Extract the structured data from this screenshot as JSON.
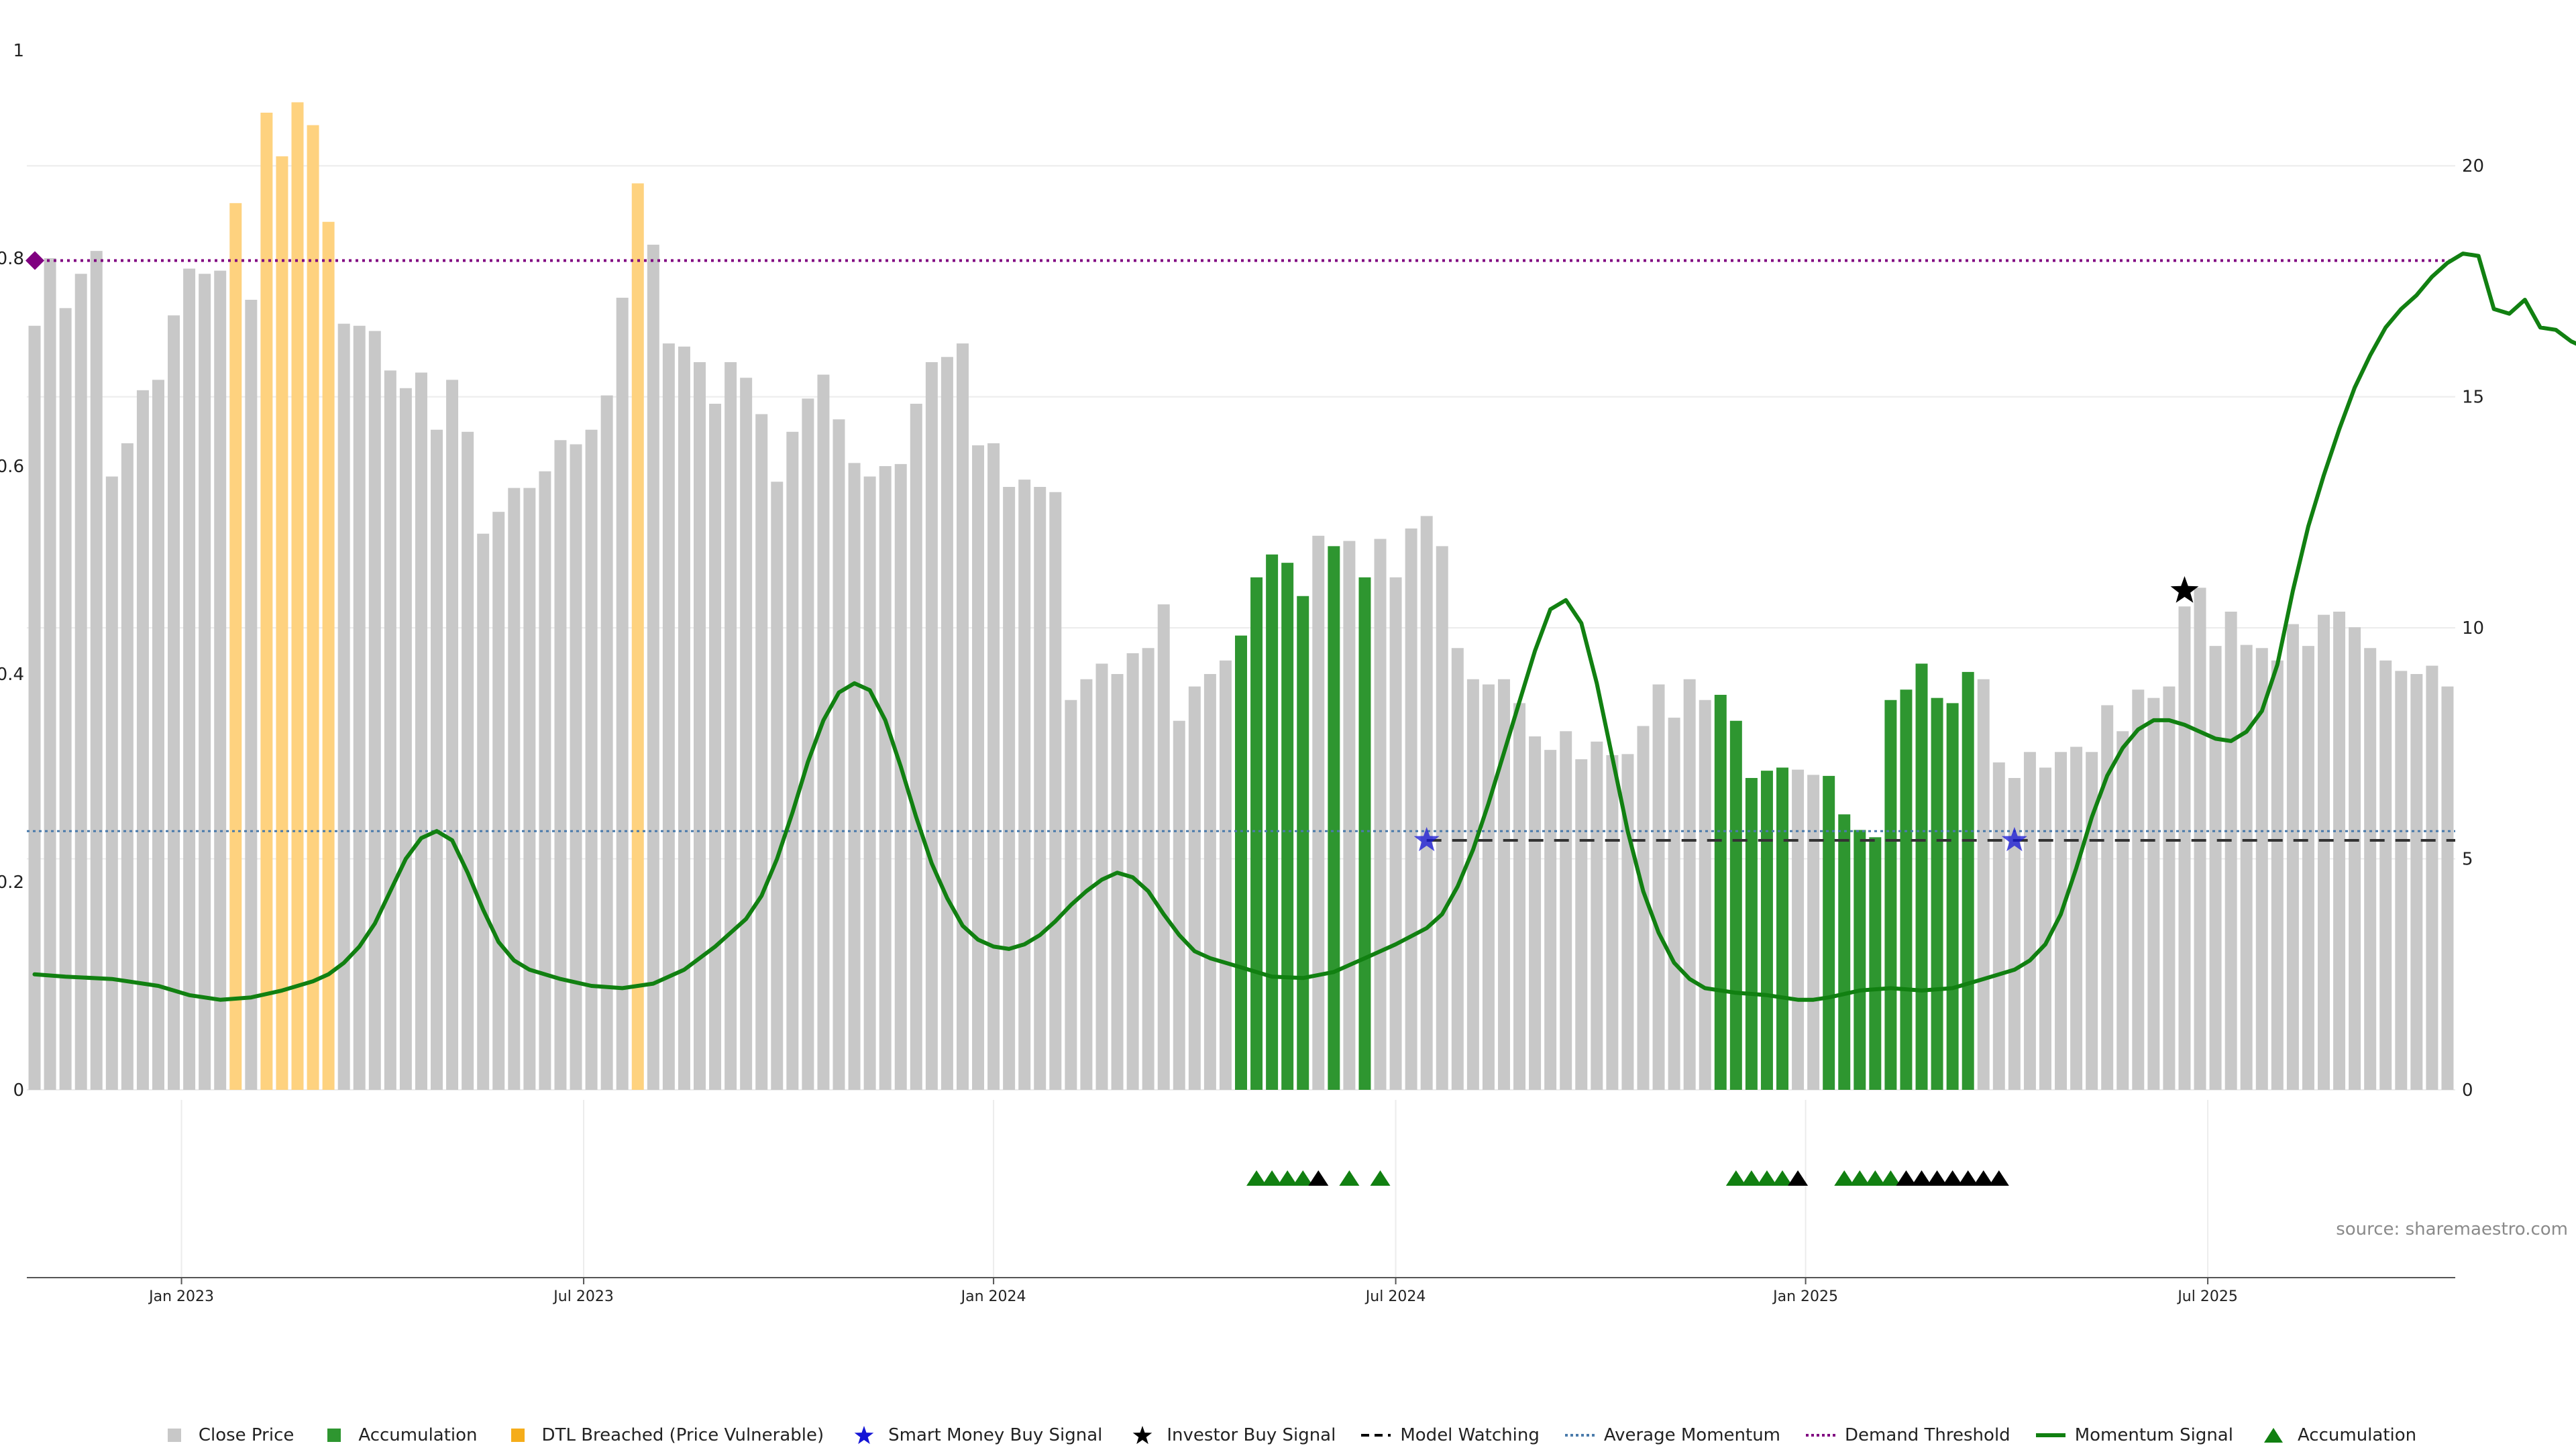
{
  "chart_data": {
    "type": "bar",
    "source_note": "source: sharemaestro.com",
    "x_tick_labels": [
      "Jan 2023",
      "Jul 2023",
      "Jan 2024",
      "Jul 2024",
      "Jan 2025",
      "Jul 2025"
    ],
    "left_axis": {
      "ticks": [
        "0",
        "0.2",
        "0.4",
        "0.6",
        "0.8",
        "1"
      ],
      "ylim": [
        0,
        1
      ]
    },
    "right_axis": {
      "ticks": [
        "0",
        "5",
        "10",
        "15",
        "20"
      ],
      "ylim": [
        0,
        22.5
      ]
    },
    "grid": true,
    "legend_position": "bottom-center",
    "price_bars": [
      {
        "v": 0.735,
        "c": "gray"
      },
      {
        "v": 0.8,
        "c": "gray"
      },
      {
        "v": 0.752,
        "c": "gray"
      },
      {
        "v": 0.785,
        "c": "gray"
      },
      {
        "v": 0.807,
        "c": "gray"
      },
      {
        "v": 0.59,
        "c": "gray"
      },
      {
        "v": 0.622,
        "c": "gray"
      },
      {
        "v": 0.673,
        "c": "gray"
      },
      {
        "v": 0.683,
        "c": "gray"
      },
      {
        "v": 0.745,
        "c": "gray"
      },
      {
        "v": 0.79,
        "c": "gray"
      },
      {
        "v": 0.785,
        "c": "gray"
      },
      {
        "v": 0.788,
        "c": "gray"
      },
      {
        "v": 0.853,
        "c": "orange"
      },
      {
        "v": 0.76,
        "c": "gray"
      },
      {
        "v": 0.94,
        "c": "orange"
      },
      {
        "v": 0.898,
        "c": "orange"
      },
      {
        "v": 0.95,
        "c": "orange"
      },
      {
        "v": 0.928,
        "c": "orange"
      },
      {
        "v": 0.835,
        "c": "orange"
      },
      {
        "v": 0.737,
        "c": "gray"
      },
      {
        "v": 0.735,
        "c": "gray"
      },
      {
        "v": 0.73,
        "c": "gray"
      },
      {
        "v": 0.692,
        "c": "gray"
      },
      {
        "v": 0.675,
        "c": "gray"
      },
      {
        "v": 0.69,
        "c": "gray"
      },
      {
        "v": 0.635,
        "c": "gray"
      },
      {
        "v": 0.683,
        "c": "gray"
      },
      {
        "v": 0.633,
        "c": "gray"
      },
      {
        "v": 0.535,
        "c": "gray"
      },
      {
        "v": 0.556,
        "c": "gray"
      },
      {
        "v": 0.579,
        "c": "gray"
      },
      {
        "v": 0.579,
        "c": "gray"
      },
      {
        "v": 0.595,
        "c": "gray"
      },
      {
        "v": 0.625,
        "c": "gray"
      },
      {
        "v": 0.621,
        "c": "gray"
      },
      {
        "v": 0.635,
        "c": "gray"
      },
      {
        "v": 0.668,
        "c": "gray"
      },
      {
        "v": 0.762,
        "c": "gray"
      },
      {
        "v": 0.872,
        "c": "orange"
      },
      {
        "v": 0.813,
        "c": "gray"
      },
      {
        "v": 0.718,
        "c": "gray"
      },
      {
        "v": 0.715,
        "c": "gray"
      },
      {
        "v": 0.7,
        "c": "gray"
      },
      {
        "v": 0.66,
        "c": "gray"
      },
      {
        "v": 0.7,
        "c": "gray"
      },
      {
        "v": 0.685,
        "c": "gray"
      },
      {
        "v": 0.65,
        "c": "gray"
      },
      {
        "v": 0.585,
        "c": "gray"
      },
      {
        "v": 0.633,
        "c": "gray"
      },
      {
        "v": 0.665,
        "c": "gray"
      },
      {
        "v": 0.688,
        "c": "gray"
      },
      {
        "v": 0.645,
        "c": "gray"
      },
      {
        "v": 0.603,
        "c": "gray"
      },
      {
        "v": 0.59,
        "c": "gray"
      },
      {
        "v": 0.6,
        "c": "gray"
      },
      {
        "v": 0.602,
        "c": "gray"
      },
      {
        "v": 0.66,
        "c": "gray"
      },
      {
        "v": 0.7,
        "c": "gray"
      },
      {
        "v": 0.705,
        "c": "gray"
      },
      {
        "v": 0.718,
        "c": "gray"
      },
      {
        "v": 0.62,
        "c": "gray"
      },
      {
        "v": 0.622,
        "c": "gray"
      },
      {
        "v": 0.58,
        "c": "gray"
      },
      {
        "v": 0.587,
        "c": "gray"
      },
      {
        "v": 0.58,
        "c": "gray"
      },
      {
        "v": 0.575,
        "c": "gray"
      },
      {
        "v": 0.375,
        "c": "gray"
      },
      {
        "v": 0.395,
        "c": "gray"
      },
      {
        "v": 0.41,
        "c": "gray"
      },
      {
        "v": 0.4,
        "c": "gray"
      },
      {
        "v": 0.42,
        "c": "gray"
      },
      {
        "v": 0.425,
        "c": "gray"
      },
      {
        "v": 0.467,
        "c": "gray"
      },
      {
        "v": 0.355,
        "c": "gray"
      },
      {
        "v": 0.388,
        "c": "gray"
      },
      {
        "v": 0.4,
        "c": "gray"
      },
      {
        "v": 0.413,
        "c": "gray"
      },
      {
        "v": 0.437,
        "c": "green"
      },
      {
        "v": 0.493,
        "c": "green"
      },
      {
        "v": 0.515,
        "c": "green"
      },
      {
        "v": 0.507,
        "c": "green"
      },
      {
        "v": 0.475,
        "c": "green"
      },
      {
        "v": 0.533,
        "c": "gray"
      },
      {
        "v": 0.523,
        "c": "green"
      },
      {
        "v": 0.528,
        "c": "gray"
      },
      {
        "v": 0.493,
        "c": "green"
      },
      {
        "v": 0.53,
        "c": "gray"
      },
      {
        "v": 0.493,
        "c": "gray"
      },
      {
        "v": 0.54,
        "c": "gray"
      },
      {
        "v": 0.552,
        "c": "gray"
      },
      {
        "v": 0.523,
        "c": "gray"
      },
      {
        "v": 0.425,
        "c": "gray"
      },
      {
        "v": 0.395,
        "c": "gray"
      },
      {
        "v": 0.39,
        "c": "gray"
      },
      {
        "v": 0.395,
        "c": "gray"
      },
      {
        "v": 0.372,
        "c": "gray"
      },
      {
        "v": 0.34,
        "c": "gray"
      },
      {
        "v": 0.327,
        "c": "gray"
      },
      {
        "v": 0.345,
        "c": "gray"
      },
      {
        "v": 0.318,
        "c": "gray"
      },
      {
        "v": 0.335,
        "c": "gray"
      },
      {
        "v": 0.322,
        "c": "gray"
      },
      {
        "v": 0.323,
        "c": "gray"
      },
      {
        "v": 0.35,
        "c": "gray"
      },
      {
        "v": 0.39,
        "c": "gray"
      },
      {
        "v": 0.358,
        "c": "gray"
      },
      {
        "v": 0.395,
        "c": "gray"
      },
      {
        "v": 0.375,
        "c": "gray"
      },
      {
        "v": 0.38,
        "c": "green"
      },
      {
        "v": 0.355,
        "c": "green"
      },
      {
        "v": 0.3,
        "c": "green"
      },
      {
        "v": 0.307,
        "c": "green"
      },
      {
        "v": 0.31,
        "c": "green"
      },
      {
        "v": 0.308,
        "c": "gray"
      },
      {
        "v": 0.303,
        "c": "gray"
      },
      {
        "v": 0.302,
        "c": "green"
      },
      {
        "v": 0.265,
        "c": "green"
      },
      {
        "v": 0.25,
        "c": "green"
      },
      {
        "v": 0.243,
        "c": "green"
      },
      {
        "v": 0.375,
        "c": "green"
      },
      {
        "v": 0.385,
        "c": "green"
      },
      {
        "v": 0.41,
        "c": "green"
      },
      {
        "v": 0.377,
        "c": "green"
      },
      {
        "v": 0.372,
        "c": "green"
      },
      {
        "v": 0.402,
        "c": "green"
      },
      {
        "v": 0.395,
        "c": "gray"
      },
      {
        "v": 0.315,
        "c": "gray"
      },
      {
        "v": 0.3,
        "c": "gray"
      },
      {
        "v": 0.325,
        "c": "gray"
      },
      {
        "v": 0.31,
        "c": "gray"
      },
      {
        "v": 0.325,
        "c": "gray"
      },
      {
        "v": 0.33,
        "c": "gray"
      },
      {
        "v": 0.325,
        "c": "gray"
      },
      {
        "v": 0.37,
        "c": "gray"
      },
      {
        "v": 0.345,
        "c": "gray"
      },
      {
        "v": 0.385,
        "c": "gray"
      },
      {
        "v": 0.377,
        "c": "gray"
      },
      {
        "v": 0.388,
        "c": "gray"
      },
      {
        "v": 0.465,
        "c": "gray"
      },
      {
        "v": 0.483,
        "c": "gray"
      },
      {
        "v": 0.427,
        "c": "gray"
      },
      {
        "v": 0.46,
        "c": "gray"
      },
      {
        "v": 0.428,
        "c": "gray"
      },
      {
        "v": 0.425,
        "c": "gray"
      },
      {
        "v": 0.413,
        "c": "gray"
      },
      {
        "v": 0.448,
        "c": "gray"
      },
      {
        "v": 0.427,
        "c": "gray"
      },
      {
        "v": 0.457,
        "c": "gray"
      },
      {
        "v": 0.46,
        "c": "gray"
      },
      {
        "v": 0.445,
        "c": "gray"
      },
      {
        "v": 0.425,
        "c": "gray"
      },
      {
        "v": 0.413,
        "c": "gray"
      },
      {
        "v": 0.403,
        "c": "gray"
      },
      {
        "v": 0.4,
        "c": "gray"
      },
      {
        "v": 0.408,
        "c": "gray"
      },
      {
        "v": 0.388,
        "c": "gray"
      }
    ],
    "momentum_signal": [
      [
        0,
        2.5
      ],
      [
        2,
        2.45
      ],
      [
        5,
        2.4
      ],
      [
        8,
        2.25
      ],
      [
        10,
        2.05
      ],
      [
        12,
        1.95
      ],
      [
        14,
        2.0
      ],
      [
        16,
        2.15
      ],
      [
        18,
        2.35
      ],
      [
        19,
        2.5
      ],
      [
        20,
        2.75
      ],
      [
        21,
        3.1
      ],
      [
        22,
        3.6
      ],
      [
        23,
        4.3
      ],
      [
        24,
        5.0
      ],
      [
        25,
        5.45
      ],
      [
        26,
        5.6
      ],
      [
        27,
        5.4
      ],
      [
        28,
        4.7
      ],
      [
        29,
        3.9
      ],
      [
        30,
        3.2
      ],
      [
        31,
        2.8
      ],
      [
        32,
        2.6
      ],
      [
        34,
        2.4
      ],
      [
        36,
        2.25
      ],
      [
        38,
        2.2
      ],
      [
        40,
        2.3
      ],
      [
        42,
        2.6
      ],
      [
        44,
        3.1
      ],
      [
        46,
        3.7
      ],
      [
        47,
        4.2
      ],
      [
        48,
        5.0
      ],
      [
        49,
        6.0
      ],
      [
        50,
        7.1
      ],
      [
        51,
        8.0
      ],
      [
        52,
        8.6
      ],
      [
        53,
        8.8
      ],
      [
        54,
        8.65
      ],
      [
        55,
        8.0
      ],
      [
        56,
        7.0
      ],
      [
        57,
        5.9
      ],
      [
        58,
        4.9
      ],
      [
        59,
        4.15
      ],
      [
        60,
        3.55
      ],
      [
        61,
        3.25
      ],
      [
        62,
        3.1
      ],
      [
        63,
        3.05
      ],
      [
        64,
        3.15
      ],
      [
        65,
        3.35
      ],
      [
        66,
        3.65
      ],
      [
        67,
        4.0
      ],
      [
        68,
        4.3
      ],
      [
        69,
        4.55
      ],
      [
        70,
        4.7
      ],
      [
        71,
        4.6
      ],
      [
        72,
        4.3
      ],
      [
        73,
        3.8
      ],
      [
        74,
        3.35
      ],
      [
        75,
        3.0
      ],
      [
        76,
        2.85
      ],
      [
        78,
        2.65
      ],
      [
        80,
        2.45
      ],
      [
        82,
        2.42
      ],
      [
        84,
        2.55
      ],
      [
        86,
        2.85
      ],
      [
        88,
        3.15
      ],
      [
        90,
        3.5
      ],
      [
        91,
        3.8
      ],
      [
        92,
        4.4
      ],
      [
        93,
        5.2
      ],
      [
        94,
        6.2
      ],
      [
        95,
        7.3
      ],
      [
        96,
        8.4
      ],
      [
        97,
        9.5
      ],
      [
        98,
        10.4
      ],
      [
        99,
        10.6
      ],
      [
        100,
        10.1
      ],
      [
        101,
        8.8
      ],
      [
        102,
        7.2
      ],
      [
        103,
        5.6
      ],
      [
        104,
        4.3
      ],
      [
        105,
        3.4
      ],
      [
        106,
        2.75
      ],
      [
        107,
        2.4
      ],
      [
        108,
        2.2
      ],
      [
        110,
        2.1
      ],
      [
        112,
        2.05
      ],
      [
        114,
        1.95
      ],
      [
        115,
        1.95
      ],
      [
        116,
        2.0
      ],
      [
        118,
        2.15
      ],
      [
        120,
        2.2
      ],
      [
        122,
        2.15
      ],
      [
        124,
        2.2
      ],
      [
        126,
        2.4
      ],
      [
        128,
        2.6
      ],
      [
        129,
        2.8
      ],
      [
        130,
        3.15
      ],
      [
        131,
        3.8
      ],
      [
        132,
        4.8
      ],
      [
        133,
        5.9
      ],
      [
        134,
        6.8
      ],
      [
        135,
        7.4
      ],
      [
        136,
        7.8
      ],
      [
        137,
        8.0
      ],
      [
        138,
        8.0
      ],
      [
        139,
        7.9
      ],
      [
        140,
        7.75
      ],
      [
        141,
        7.6
      ],
      [
        142,
        7.55
      ],
      [
        143,
        7.75
      ],
      [
        144,
        8.2
      ],
      [
        145,
        9.2
      ],
      [
        146,
        10.8
      ],
      [
        147,
        12.2
      ],
      [
        148,
        13.3
      ],
      [
        149,
        14.3
      ],
      [
        150,
        15.2
      ],
      [
        151,
        15.9
      ],
      [
        152,
        16.5
      ],
      [
        153,
        16.9
      ],
      [
        154,
        17.2
      ],
      [
        155,
        17.6
      ],
      [
        156,
        17.9
      ],
      [
        157,
        18.1
      ],
      [
        158,
        18.05
      ],
      [
        159,
        16.9
      ],
      [
        160,
        16.8
      ],
      [
        161,
        17.1
      ],
      [
        162,
        16.5
      ],
      [
        163,
        16.45
      ],
      [
        164,
        16.2
      ],
      [
        165,
        16.05
      ],
      [
        166,
        15.8
      ]
    ],
    "average_momentum": 5.6,
    "model_watching": {
      "start_index": 90,
      "value": 5.4
    },
    "demand_threshold": 17.95,
    "demand_threshold_marker": 17.95,
    "smart_money_signals": [
      {
        "index": 90,
        "value": 5.4
      },
      {
        "index": 128,
        "value": 5.4
      }
    ],
    "investor_buy_signals": [
      {
        "index": 139,
        "value": 10.8
      }
    ],
    "accumulation_triangles": [
      {
        "index": 79,
        "c": "green"
      },
      {
        "index": 80,
        "c": "green"
      },
      {
        "index": 81,
        "c": "green"
      },
      {
        "index": 82,
        "c": "green"
      },
      {
        "index": 83,
        "c": "black"
      },
      {
        "index": 85,
        "c": "green"
      },
      {
        "index": 87,
        "c": "green"
      },
      {
        "index": 110,
        "c": "green"
      },
      {
        "index": 111,
        "c": "green"
      },
      {
        "index": 112,
        "c": "green"
      },
      {
        "index": 113,
        "c": "green"
      },
      {
        "index": 114,
        "c": "black"
      },
      {
        "index": 117,
        "c": "green"
      },
      {
        "index": 118,
        "c": "green"
      },
      {
        "index": 119,
        "c": "green"
      },
      {
        "index": 120,
        "c": "green"
      },
      {
        "index": 121,
        "c": "black"
      },
      {
        "index": 122,
        "c": "black"
      },
      {
        "index": 123,
        "c": "black"
      },
      {
        "index": 124,
        "c": "black"
      },
      {
        "index": 125,
        "c": "black"
      },
      {
        "index": 126,
        "c": "black"
      },
      {
        "index": 127,
        "c": "black"
      }
    ],
    "x_tick_indices": [
      9.5,
      35.5,
      62,
      88,
      114.5,
      140.5
    ],
    "colors": {
      "gray": "#c8c8c8",
      "green": "#2e9630",
      "orange": "#fed27f",
      "momentum": "#118011",
      "threshold": "#800080",
      "avg": "#4a7bab",
      "watch": "#333333",
      "smart": "#1515d6",
      "investor": "#000000"
    },
    "legend": [
      {
        "label": "Close Price",
        "sym": "gray-square"
      },
      {
        "label": "Accumulation",
        "sym": "green-square"
      },
      {
        "label": "DTL Breached (Price Vulnerable)",
        "sym": "orange-square"
      },
      {
        "label": "Smart Money Buy Signal",
        "sym": "blue-star"
      },
      {
        "label": "Investor Buy Signal",
        "sym": "black-star"
      },
      {
        "label": "Model Watching",
        "sym": "dashed-line"
      },
      {
        "label": "Average Momentum",
        "sym": "dotted-blue-line"
      },
      {
        "label": "Demand Threshold",
        "sym": "dotted-purple-line"
      },
      {
        "label": "Momentum Signal",
        "sym": "green-line"
      },
      {
        "label": "Accumulation",
        "sym": "green-triangle"
      }
    ]
  }
}
